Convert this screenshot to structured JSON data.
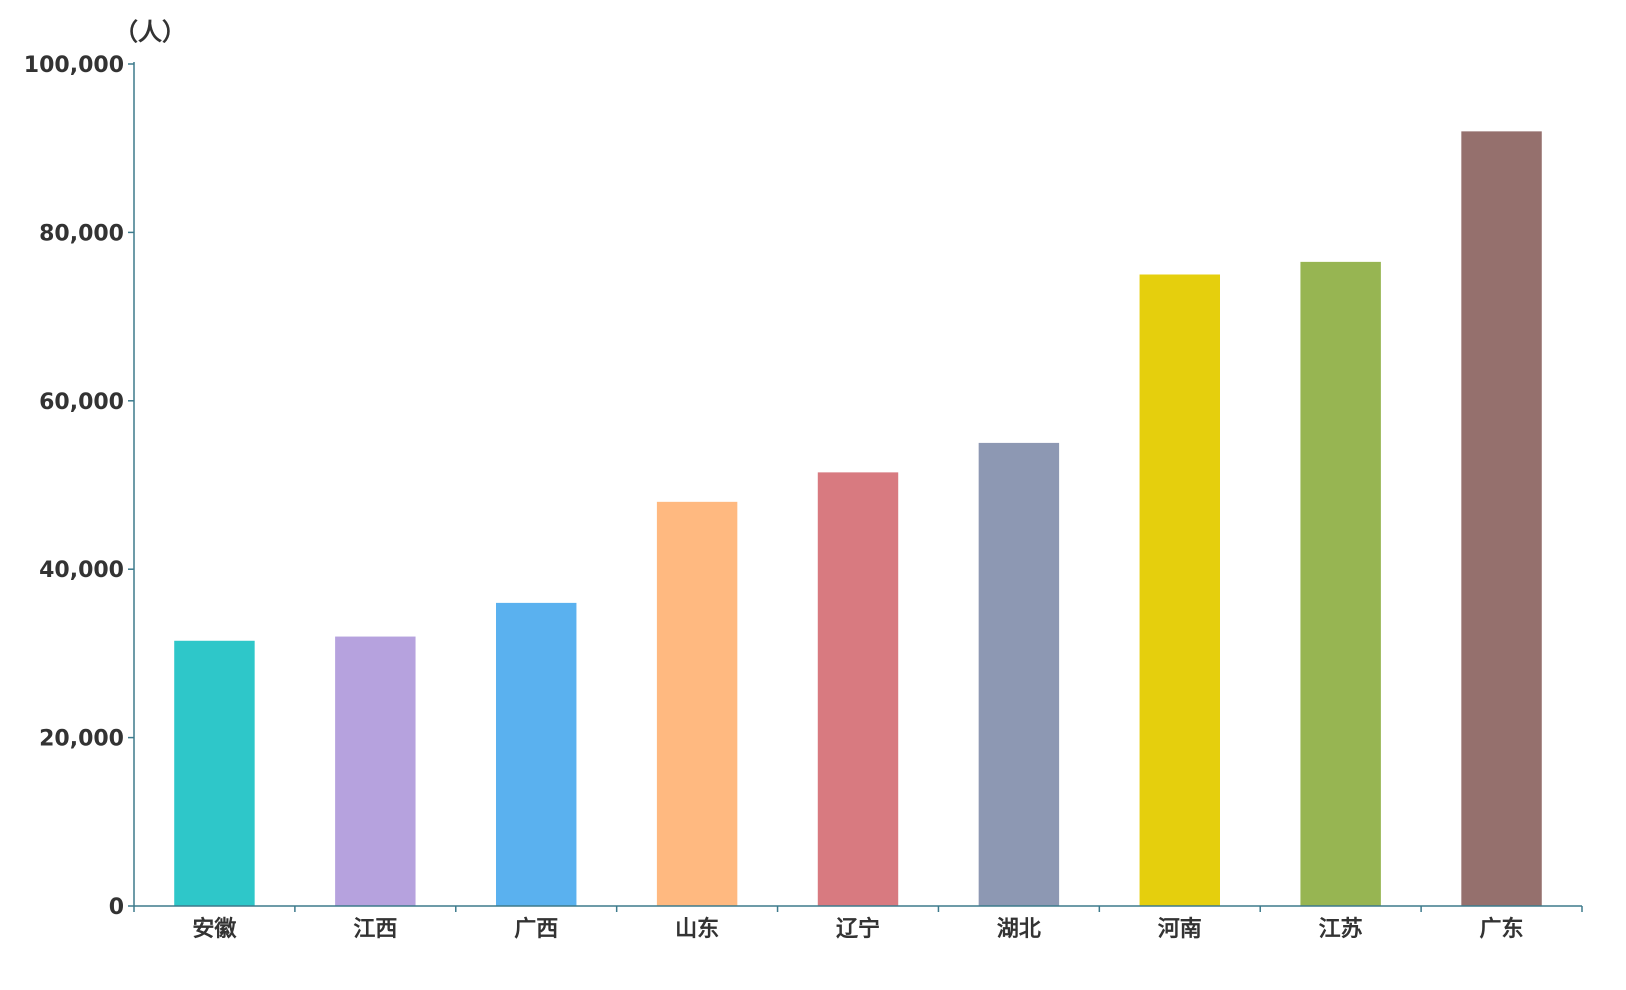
{
  "chart_data": {
    "type": "bar",
    "categories": [
      "安徽",
      "江西",
      "广西",
      "山东",
      "辽宁",
      "湖北",
      "河南",
      "江苏",
      "广东"
    ],
    "values": [
      31500,
      32000,
      36000,
      48000,
      51500,
      55000,
      75000,
      76500,
      92000
    ],
    "colors": [
      "#2ec7c9",
      "#b6a2de",
      "#5ab1ef",
      "#ffb980",
      "#d87a80",
      "#8d98b3",
      "#e5cf0d",
      "#97b552",
      "#95706d"
    ],
    "ylabel": "（人）",
    "ylim": [
      0,
      100000
    ],
    "yticks": [
      0,
      20000,
      40000,
      60000,
      80000,
      100000
    ],
    "ytick_labels": [
      "0",
      "20,000",
      "40,000",
      "60,000",
      "80,000",
      "100,000"
    ],
    "axis_color": "#3d7a8c",
    "grid": false,
    "legend": false
  }
}
